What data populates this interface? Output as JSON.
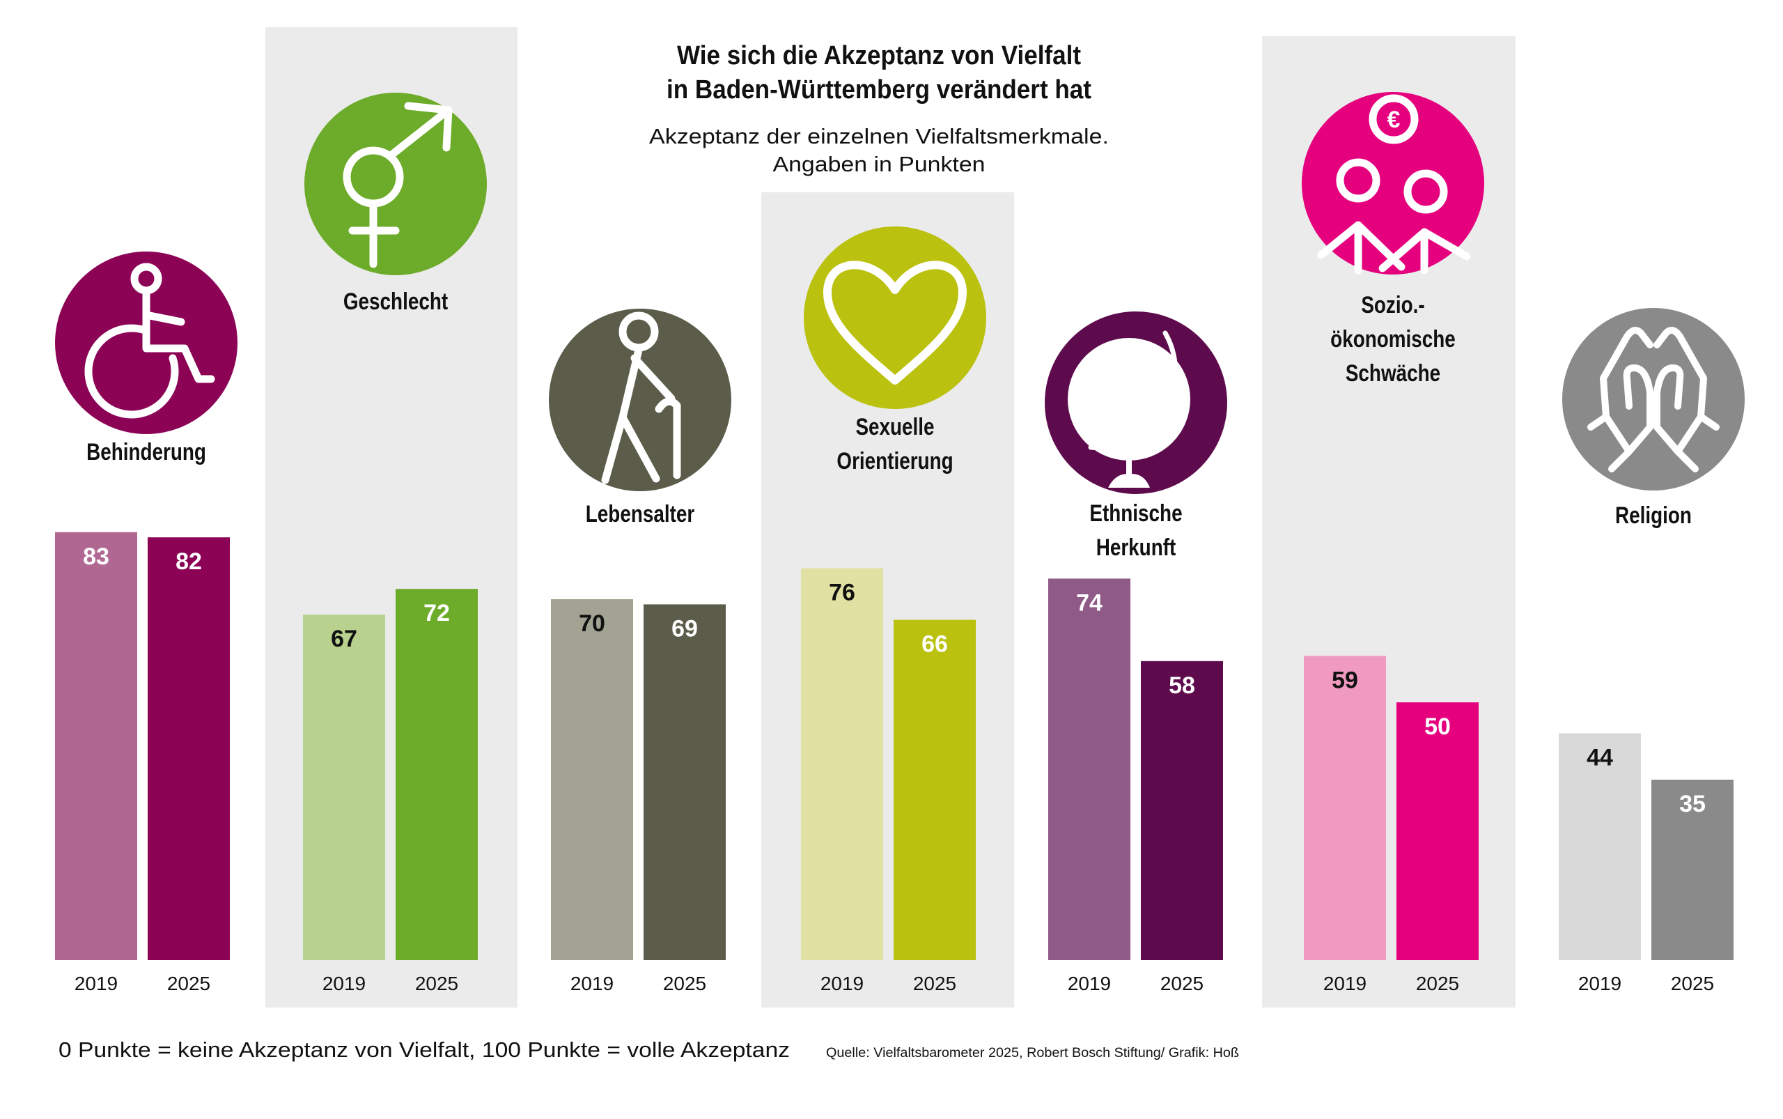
{
  "title_lines": [
    "Wie sich die Akzeptanz von Vielfalt",
    "in Baden-Württemberg verändert hat"
  ],
  "subtitle_lines": [
    "Akzeptanz der einzelnen Vielfaltsmerkmale.",
    "Angaben in Punkten"
  ],
  "footnote": "0 Punkte = keine Akzeptanz von Vielfalt, 100 Punkte = volle Akzeptanz",
  "source": "Quelle: Vielfaltsbarometer 2025, Robert Bosch Stiftung/ Grafik: Hoß",
  "chart_data": {
    "type": "bar",
    "title": "Wie sich die Akzeptanz von Vielfalt in Baden-Württemberg verändert hat",
    "subtitle": "Akzeptanz der einzelnen Vielfaltsmerkmale. Angaben in Punkten",
    "xlabel": "",
    "ylabel": "Punkte",
    "ylim": [
      0,
      100
    ],
    "grid": false,
    "legend": "none",
    "categories": [
      "Behinderung",
      "Geschlecht",
      "Lebensalter",
      "Sexuelle Orientierung",
      "Ethnische Herkunft",
      "Sozio.-ökonomische Schwäche",
      "Religion"
    ],
    "years": [
      "2019",
      "2025"
    ],
    "series": [
      {
        "name": "2019",
        "values": [
          83,
          67,
          70,
          76,
          74,
          59,
          44
        ]
      },
      {
        "name": "2025",
        "values": [
          82,
          72,
          69,
          66,
          58,
          50,
          35
        ]
      }
    ],
    "groups": [
      {
        "label_lines": [
          "Behinderung"
        ],
        "icon": "wheelchair-icon",
        "icon_color": "#8c0356",
        "color_2019": "#b06892",
        "color_2025": "#8c0356",
        "label_color_2019": "#ffffff",
        "label_color_2025": "#ffffff",
        "shaded": false
      },
      {
        "label_lines": [
          "Geschlecht"
        ],
        "icon": "gender-symbol-icon",
        "icon_color": "#6dac2a",
        "color_2019": "#b8d18e",
        "color_2025": "#6dac2a",
        "label_color_2019": "#111111",
        "label_color_2025": "#ffffff",
        "shaded": true
      },
      {
        "label_lines": [
          "Lebensalter"
        ],
        "icon": "elderly-person-cane-icon",
        "icon_color": "#5b5c49",
        "color_2019": "#a2a392",
        "color_2025": "#5b5c49",
        "label_color_2019": "#111111",
        "label_color_2025": "#ffffff",
        "shaded": false
      },
      {
        "label_lines": [
          "Sexuelle",
          "Orientierung"
        ],
        "icon": "heart-icon",
        "icon_color": "#bac10f",
        "color_2019": "#e0e1a3",
        "color_2025": "#bac10f",
        "label_color_2019": "#111111",
        "label_color_2025": "#ffffff",
        "shaded": true
      },
      {
        "label_lines": [
          "Ethnische",
          "Herkunft"
        ],
        "icon": "globe-icon",
        "icon_color": "#5e0b4d",
        "color_2019": "#8f5a86",
        "color_2025": "#5e0b4d",
        "label_color_2019": "#ffffff",
        "label_color_2025": "#ffffff",
        "shaded": false
      },
      {
        "label_lines": [
          "Sozio.-",
          "ökonomische",
          "Schwäche"
        ],
        "icon": "people-euro-icon",
        "icon_color": "#e5007e",
        "color_2019": "#f09ac0",
        "color_2025": "#e5007e",
        "label_color_2019": "#111111",
        "label_color_2025": "#ffffff",
        "shaded": true
      },
      {
        "label_lines": [
          "Religion"
        ],
        "icon": "praying-hands-icon",
        "icon_color": "#8a8a8a",
        "color_2019": "#d9d9d9",
        "color_2025": "#8a8a8a",
        "label_color_2019": "#111111",
        "label_color_2025": "#ffffff",
        "shaded": false
      }
    ]
  },
  "colors": {
    "panel_shade": "#ebebeb",
    "background": "#ffffff",
    "text": "#111111"
  }
}
